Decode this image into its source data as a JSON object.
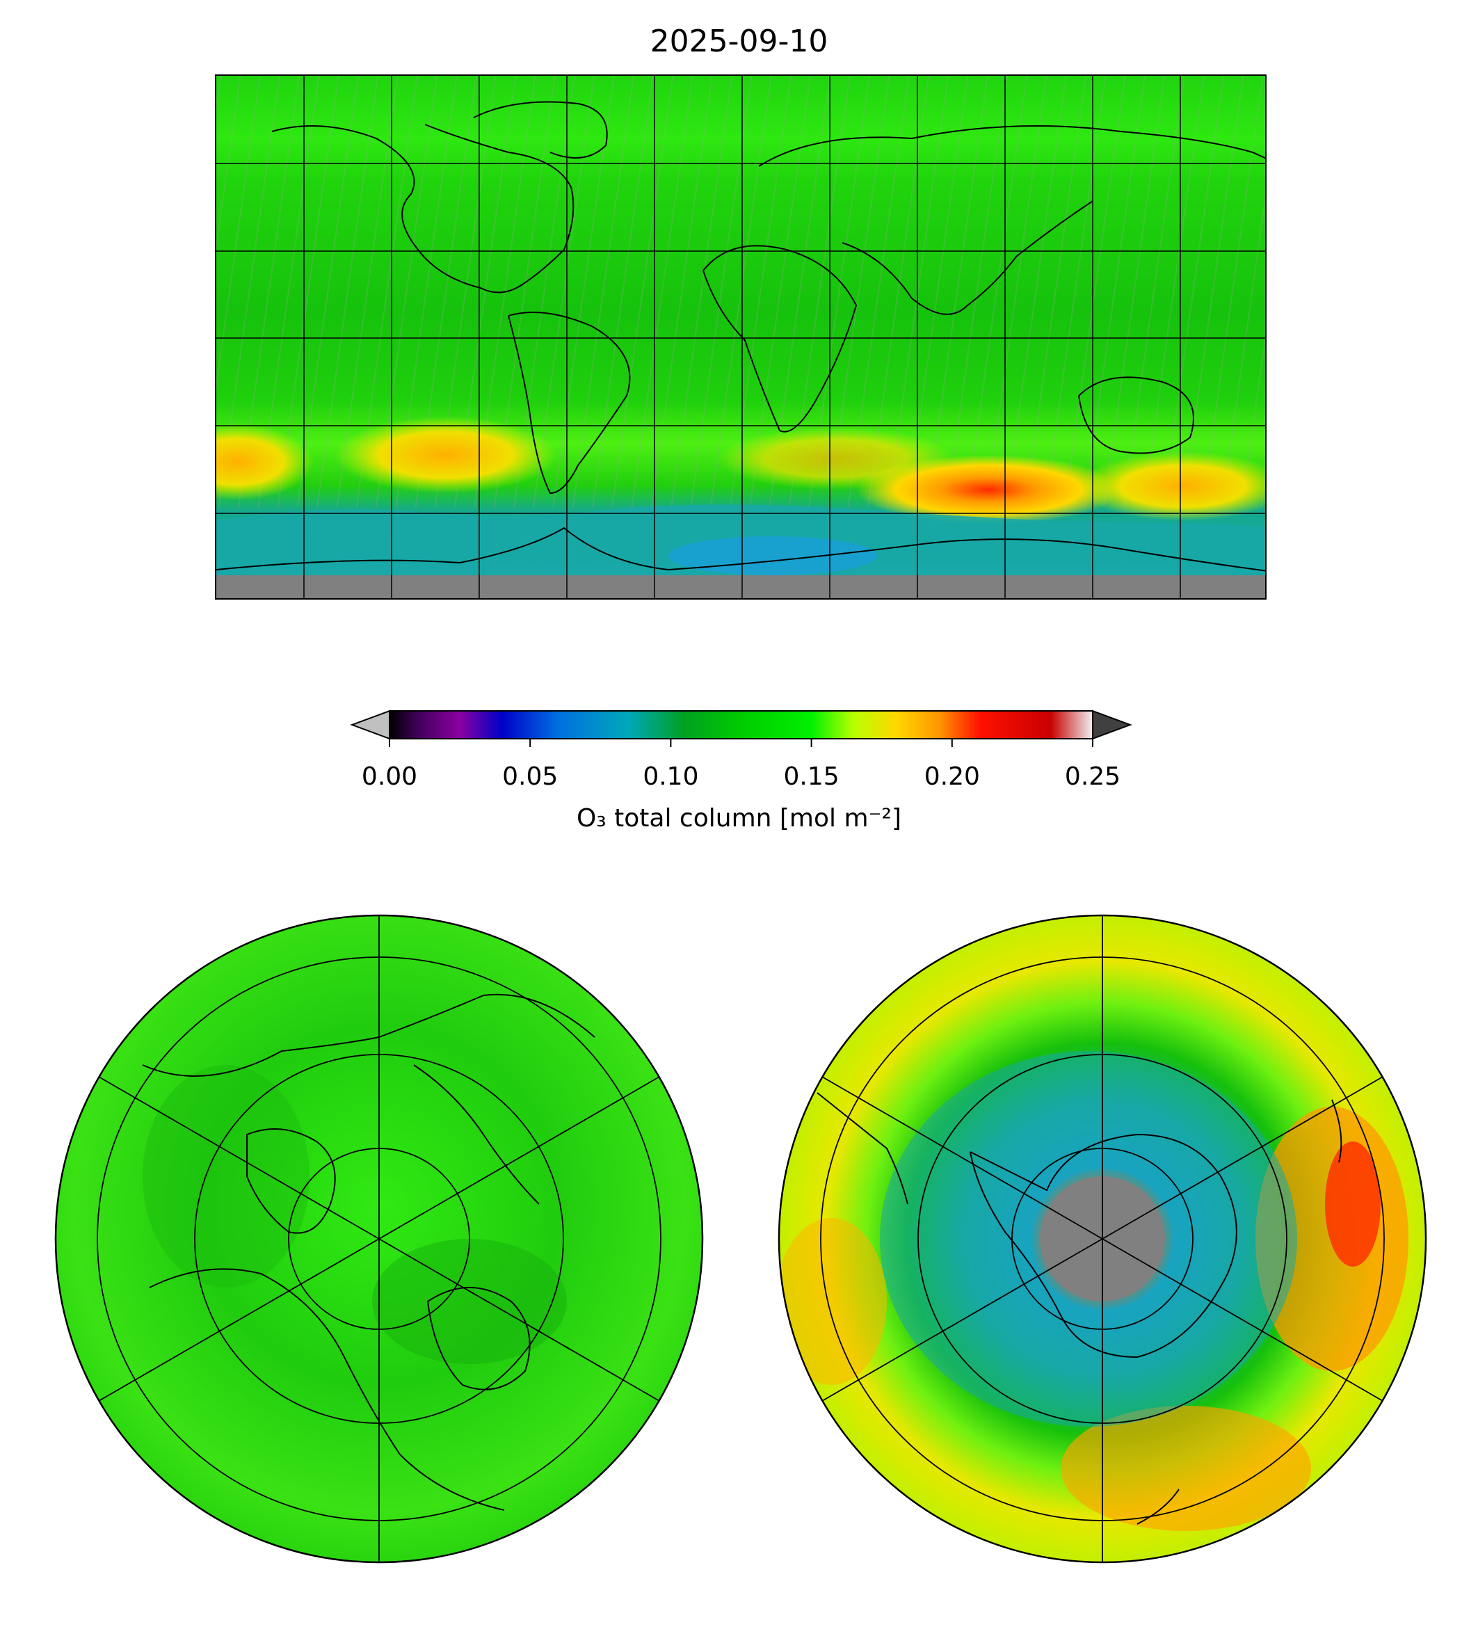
{
  "title": "2025-09-10",
  "colorbar": {
    "label": "O₃ total column [mol m⁻²]",
    "ticks": [
      "0.00",
      "0.05",
      "0.10",
      "0.15",
      "0.20",
      "0.25"
    ],
    "tick_values": [
      0.0,
      0.05,
      0.1,
      0.15,
      0.2,
      0.25
    ],
    "vmin": 0.0,
    "vmax": 0.25,
    "extend": "both",
    "under_color": "#c0c0c0",
    "over_color": "#404040",
    "colormap_stops": [
      {
        "v": 0.0,
        "c": "#000000"
      },
      {
        "v": 0.01,
        "c": "#40005a"
      },
      {
        "v": 0.025,
        "c": "#8a00a0"
      },
      {
        "v": 0.04,
        "c": "#0000c8"
      },
      {
        "v": 0.06,
        "c": "#0070e0"
      },
      {
        "v": 0.085,
        "c": "#00a8b8"
      },
      {
        "v": 0.105,
        "c": "#00a020"
      },
      {
        "v": 0.125,
        "c": "#00cc00"
      },
      {
        "v": 0.15,
        "c": "#00f000"
      },
      {
        "v": 0.165,
        "c": "#b8ff00"
      },
      {
        "v": 0.18,
        "c": "#ffd800"
      },
      {
        "v": 0.195,
        "c": "#ff9800"
      },
      {
        "v": 0.21,
        "c": "#ff1000"
      },
      {
        "v": 0.235,
        "c": "#c80000"
      },
      {
        "v": 0.25,
        "c": "#f0f0f0"
      }
    ]
  },
  "colors": {
    "background_green": "#22d80e",
    "low_ozone": "#18a8a6",
    "hole_blue": "#1a9ee0",
    "high_orange": "#ffa300",
    "high_red": "#ff2a00",
    "no_data": "#808080",
    "swath_gray": "#9e9e9e"
  },
  "maps": [
    {
      "name": "global",
      "projection": "plate-carree"
    },
    {
      "name": "north-pole",
      "projection": "north-polar-stereographic"
    },
    {
      "name": "south-pole",
      "projection": "south-polar-stereographic"
    }
  ]
}
